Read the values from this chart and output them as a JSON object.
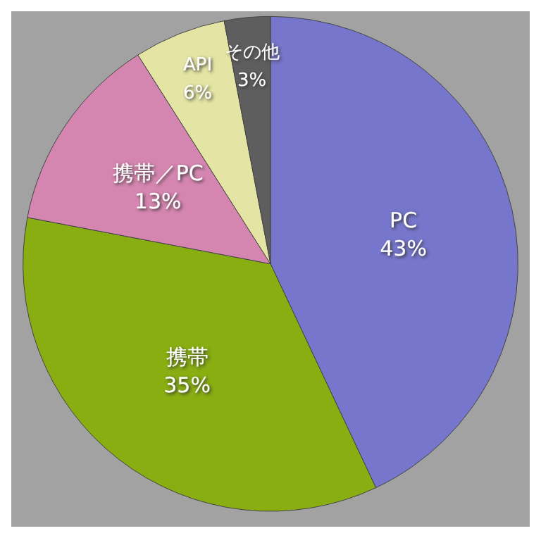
{
  "chart_data": {
    "type": "pie",
    "categories": [
      "PC",
      "携帯",
      "携帯／PC",
      "API",
      "その他"
    ],
    "values": [
      43,
      35,
      13,
      6,
      3
    ],
    "value_labels": [
      "43%",
      "35%",
      "13%",
      "6%",
      "3%"
    ],
    "colors": [
      "#7676cc",
      "#88ae12",
      "#d586b0",
      "#e4e4a4",
      "#5e5e5e"
    ],
    "legend": false
  }
}
